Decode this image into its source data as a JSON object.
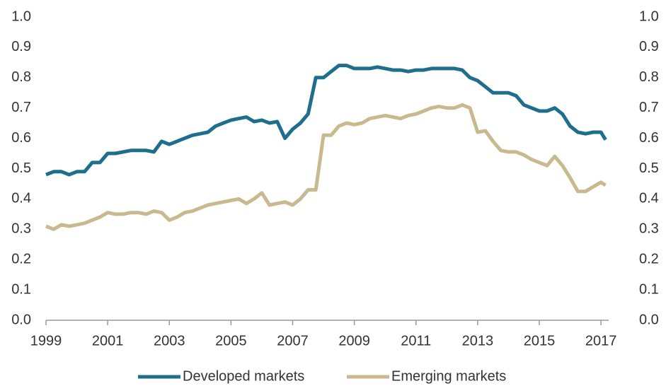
{
  "chart_data": {
    "type": "line",
    "x": [
      1999,
      1999.25,
      1999.5,
      1999.75,
      2000,
      2000.25,
      2000.5,
      2000.75,
      2001,
      2001.25,
      2001.5,
      2001.75,
      2002,
      2002.25,
      2002.5,
      2002.75,
      2003,
      2003.25,
      2003.5,
      2003.75,
      2004,
      2004.25,
      2004.5,
      2004.75,
      2005,
      2005.25,
      2005.5,
      2005.75,
      2006,
      2006.25,
      2006.5,
      2006.75,
      2007,
      2007.25,
      2007.5,
      2007.75,
      2008,
      2008.25,
      2008.5,
      2008.75,
      2009,
      2009.25,
      2009.5,
      2009.75,
      2010,
      2010.25,
      2010.5,
      2010.75,
      2011,
      2011.25,
      2011.5,
      2011.75,
      2012,
      2012.25,
      2012.5,
      2012.75,
      2013,
      2013.25,
      2013.5,
      2013.75,
      2014,
      2014.25,
      2014.5,
      2014.75,
      2015,
      2015.25,
      2015.5,
      2015.75,
      2016,
      2016.25,
      2016.5,
      2016.75,
      2017,
      2017.15
    ],
    "series": [
      {
        "name": "Developed markets",
        "color": "#1f6e8c",
        "values": [
          0.48,
          0.49,
          0.49,
          0.48,
          0.49,
          0.49,
          0.52,
          0.52,
          0.55,
          0.55,
          0.555,
          0.56,
          0.56,
          0.56,
          0.555,
          0.59,
          0.58,
          0.59,
          0.6,
          0.61,
          0.615,
          0.62,
          0.64,
          0.65,
          0.66,
          0.665,
          0.67,
          0.655,
          0.66,
          0.65,
          0.655,
          0.6,
          0.63,
          0.65,
          0.68,
          0.8,
          0.8,
          0.82,
          0.84,
          0.84,
          0.83,
          0.83,
          0.83,
          0.835,
          0.83,
          0.825,
          0.825,
          0.82,
          0.825,
          0.825,
          0.83,
          0.83,
          0.83,
          0.83,
          0.825,
          0.8,
          0.79,
          0.77,
          0.75,
          0.75,
          0.75,
          0.74,
          0.71,
          0.7,
          0.69,
          0.69,
          0.7,
          0.68,
          0.64,
          0.62,
          0.615,
          0.62,
          0.62,
          0.595
        ]
      },
      {
        "name": "Emerging markets",
        "color": "#c8b98f",
        "values": [
          0.31,
          0.3,
          0.315,
          0.31,
          0.315,
          0.32,
          0.33,
          0.34,
          0.355,
          0.35,
          0.35,
          0.355,
          0.355,
          0.35,
          0.36,
          0.355,
          0.33,
          0.34,
          0.355,
          0.36,
          0.37,
          0.38,
          0.385,
          0.39,
          0.395,
          0.4,
          0.385,
          0.4,
          0.42,
          0.38,
          0.385,
          0.39,
          0.38,
          0.4,
          0.43,
          0.43,
          0.61,
          0.61,
          0.64,
          0.65,
          0.645,
          0.65,
          0.665,
          0.67,
          0.675,
          0.67,
          0.665,
          0.675,
          0.68,
          0.69,
          0.7,
          0.705,
          0.7,
          0.7,
          0.71,
          0.7,
          0.62,
          0.625,
          0.59,
          0.56,
          0.555,
          0.555,
          0.545,
          0.53,
          0.52,
          0.51,
          0.54,
          0.51,
          0.47,
          0.425,
          0.425,
          0.44,
          0.455,
          0.445
        ]
      }
    ],
    "xlim": [
      1999,
      2017.25
    ],
    "xticks": [
      1999,
      2001,
      2003,
      2005,
      2007,
      2009,
      2011,
      2013,
      2015,
      2017
    ],
    "ylim": [
      0,
      1
    ],
    "yticks": [
      {
        "value": 0,
        "label": "0.0"
      },
      0.1,
      0.2,
      0.3,
      0.4,
      0.5,
      0.6,
      0.7,
      0.8,
      0.9,
      {
        "value": 1,
        "label": "1.0"
      }
    ],
    "y2lim": [
      0,
      1
    ],
    "y2ticks": [
      {
        "value": 0,
        "label": "0.0"
      },
      0.1,
      0.2,
      0.3,
      0.4,
      0.5,
      0.6,
      0.7,
      0.8,
      0.9,
      {
        "value": 1,
        "label": "1.0"
      }
    ],
    "legend": "bottom"
  }
}
